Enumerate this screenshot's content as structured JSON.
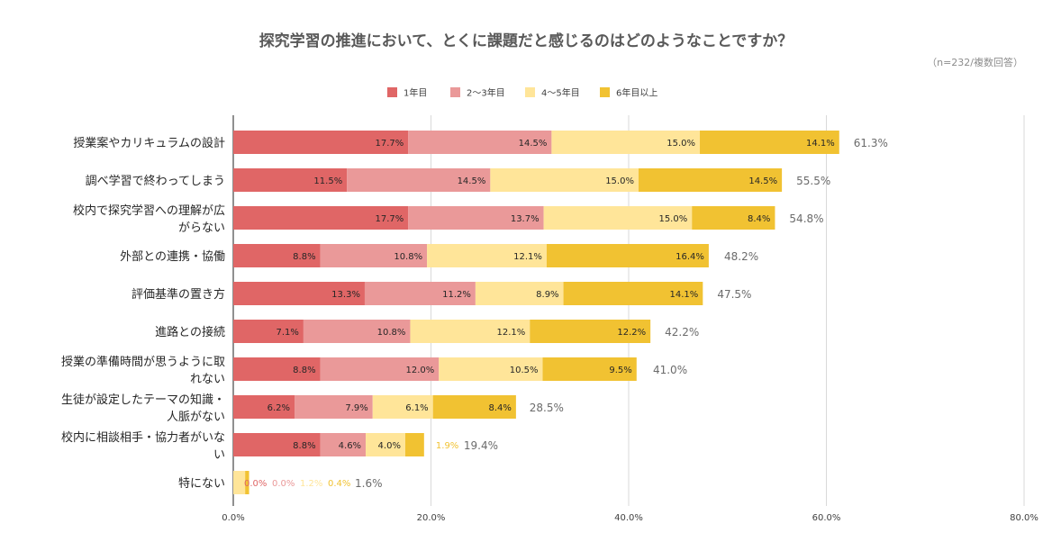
{
  "chart_data": {
    "type": "bar",
    "orientation": "horizontal",
    "stacked": true,
    "title": "探究学習の推進において、とくに課題だと感じるのはどのようなことですか？",
    "subtitle": "（n=232/複数回答）",
    "categories": [
      [
        "授業案やカリキュラムの設計"
      ],
      [
        "調べ学習で終わってしまう"
      ],
      [
        "校内で探究学習への理解が広",
        "がらない"
      ],
      [
        "外部との連携・協働"
      ],
      [
        "評価基準の置き方"
      ],
      [
        "進路との接続"
      ],
      [
        "授業の準備時間が思うように取",
        "れない"
      ],
      [
        "生徒が設定したテーマの知識・",
        "人脈がない"
      ],
      [
        "校内に相談相手・協力者がいな",
        "い"
      ],
      [
        "特にない"
      ]
    ],
    "series": [
      {
        "name": "1年目",
        "color": "#e06666",
        "label_color": "#262626",
        "values": [
          17.7,
          11.5,
          17.7,
          8.8,
          13.3,
          7.1,
          8.8,
          6.2,
          8.8,
          0.0
        ],
        "labels": [
          "17.7%",
          "11.5%",
          "17.7%",
          "8.8%",
          "13.3%",
          "7.1%",
          "8.8%",
          "6.2%",
          "8.8%",
          "0.0%"
        ]
      },
      {
        "name": "2～3年目",
        "color": "#ea9999",
        "label_color": "#262626",
        "values": [
          14.5,
          14.5,
          13.7,
          10.8,
          11.2,
          10.8,
          12.0,
          7.9,
          4.6,
          0.0
        ],
        "labels": [
          "14.5%",
          "14.5%",
          "13.7%",
          "10.8%",
          "11.2%",
          "10.8%",
          "12.0%",
          "7.9%",
          "4.6%",
          "0.0%"
        ]
      },
      {
        "name": "4～5年目",
        "color": "#ffe599",
        "label_color": "#262626",
        "values": [
          15.0,
          15.0,
          15.0,
          12.1,
          8.9,
          12.1,
          10.5,
          6.1,
          4.0,
          1.2
        ],
        "labels": [
          "15.0%",
          "15.0%",
          "15.0%",
          "12.1%",
          "8.9%",
          "12.1%",
          "10.5%",
          "6.1%",
          "4.0%",
          "1.2%"
        ]
      },
      {
        "name": "6年目以上",
        "color": "#f1c232",
        "label_color": "#262626",
        "values": [
          14.1,
          14.5,
          8.4,
          16.4,
          14.1,
          12.2,
          9.5,
          8.4,
          1.9,
          0.4
        ],
        "labels": [
          "14.1%",
          "14.5%",
          "8.4%",
          "16.4%",
          "14.1%",
          "12.2%",
          "9.5%",
          "8.4%",
          "1.9%",
          "0.4%"
        ]
      }
    ],
    "totals": [
      61.3,
      55.5,
      54.8,
      48.2,
      47.5,
      42.2,
      41.0,
      28.5,
      19.4,
      1.6
    ],
    "total_labels": [
      "61.3%",
      "55.5%",
      "54.8%",
      "48.2%",
      "47.5%",
      "42.2%",
      "41.0%",
      "28.5%",
      "19.4%",
      "1.6%"
    ],
    "xlim": [
      0,
      80
    ],
    "x_ticks": [
      0,
      20,
      40,
      60,
      80
    ],
    "x_tick_labels": [
      "0.0%",
      "20.0%",
      "40.0%",
      "60.0%",
      "80.0%"
    ],
    "grid": true,
    "legend_position": "top"
  }
}
